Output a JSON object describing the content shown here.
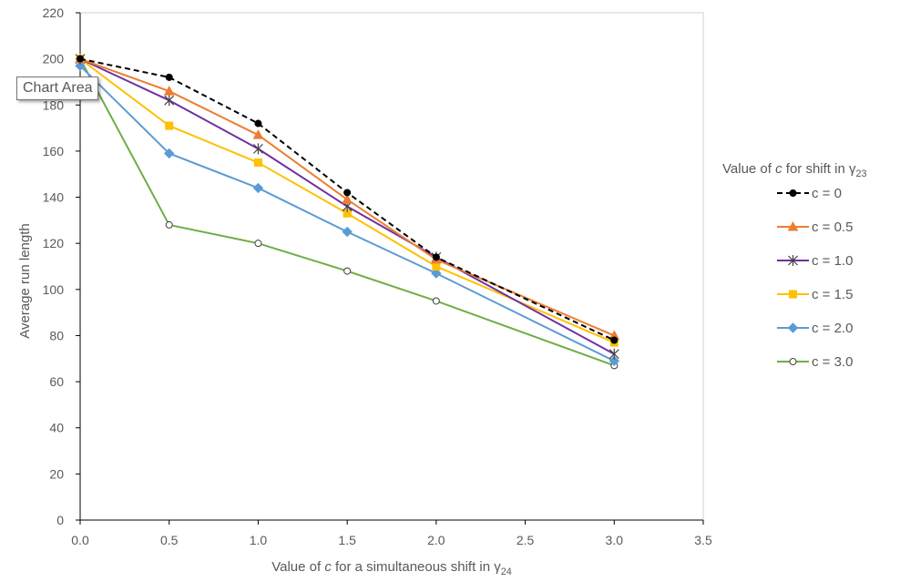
{
  "tooltip": {
    "label": "Chart Area"
  },
  "chart_data": {
    "type": "line",
    "title": "",
    "xlabel": {
      "prefix": "Value of ",
      "italic": "c",
      "middle": " for a simultaneous shift in γ",
      "sub": "24"
    },
    "ylabel": "Average run length",
    "xlim": [
      0,
      3.5
    ],
    "ylim": [
      0,
      220
    ],
    "x_ticks": [
      "0.0",
      "0.5",
      "1.0",
      "1.5",
      "2.0",
      "2.5",
      "3.0",
      "3.5"
    ],
    "y_ticks": [
      "0",
      "20",
      "40",
      "60",
      "80",
      "100",
      "120",
      "140",
      "160",
      "180",
      "200",
      "220"
    ],
    "grid": false,
    "legend": {
      "placement": "right",
      "title": {
        "prefix": "Value of ",
        "italic": "c",
        "middle": " for shift in γ",
        "sub": "23"
      }
    },
    "x": [
      0.0,
      0.5,
      1.0,
      1.5,
      2.0,
      3.0
    ],
    "series": [
      {
        "name": "c = 0",
        "color": "#000000",
        "dash": true,
        "marker": "filled-circle",
        "values": [
          200,
          192,
          172,
          142,
          114,
          78
        ]
      },
      {
        "name": "c = 0.5",
        "color": "#ED7D31",
        "dash": false,
        "marker": "triangle",
        "values": [
          200,
          186,
          167,
          139,
          113,
          80
        ]
      },
      {
        "name": "c = 1.0",
        "color": "#7030A0",
        "dash": false,
        "marker": "star",
        "values": [
          200,
          182,
          161,
          136,
          114,
          72
        ]
      },
      {
        "name": "c = 1.5",
        "color": "#FFC000",
        "dash": false,
        "marker": "square",
        "values": [
          200,
          171,
          155,
          133,
          110,
          77
        ]
      },
      {
        "name": "c = 2.0",
        "color": "#5B9BD5",
        "dash": false,
        "marker": "diamond",
        "values": [
          197,
          159,
          144,
          125,
          107,
          69
        ]
      },
      {
        "name": "c =  3.0",
        "color": "#70AD47",
        "dash": false,
        "marker": "open-circle",
        "values": [
          200,
          128,
          120,
          108,
          95,
          67
        ]
      }
    ]
  }
}
